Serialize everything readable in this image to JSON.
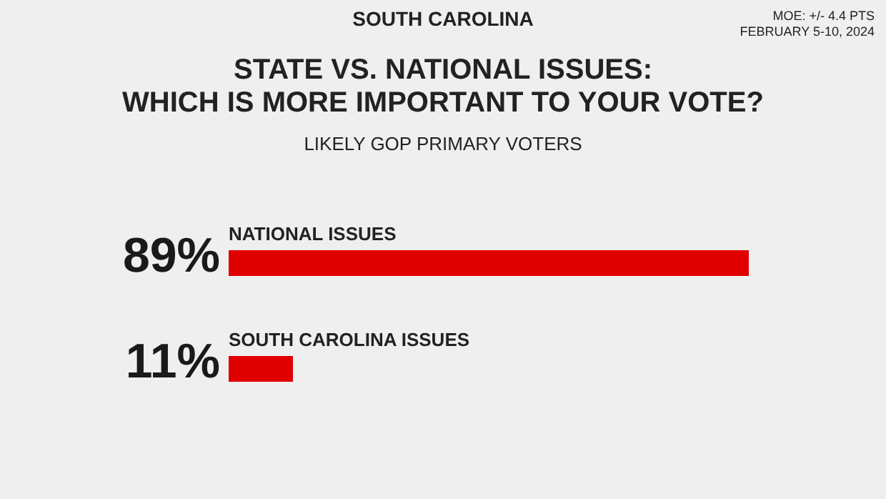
{
  "chart_data": {
    "type": "bar",
    "orientation": "horizontal",
    "title": "STATE VS. NATIONAL ISSUES:\nWHICH IS MORE IMPORTANT TO YOUR VOTE?",
    "subtitle": "LIKELY GOP PRIMARY VOTERS",
    "annotations": [
      "SOUTH CAROLINA",
      "MOE: +/- 4.4 PTS",
      "FEBRUARY 5-10, 2024"
    ],
    "categories": [
      "NATIONAL ISSUES",
      "SOUTH CAROLINA ISSUES"
    ],
    "values": [
      89,
      11
    ],
    "value_labels": [
      "89%",
      "11%"
    ],
    "color": "#e00000"
  }
}
